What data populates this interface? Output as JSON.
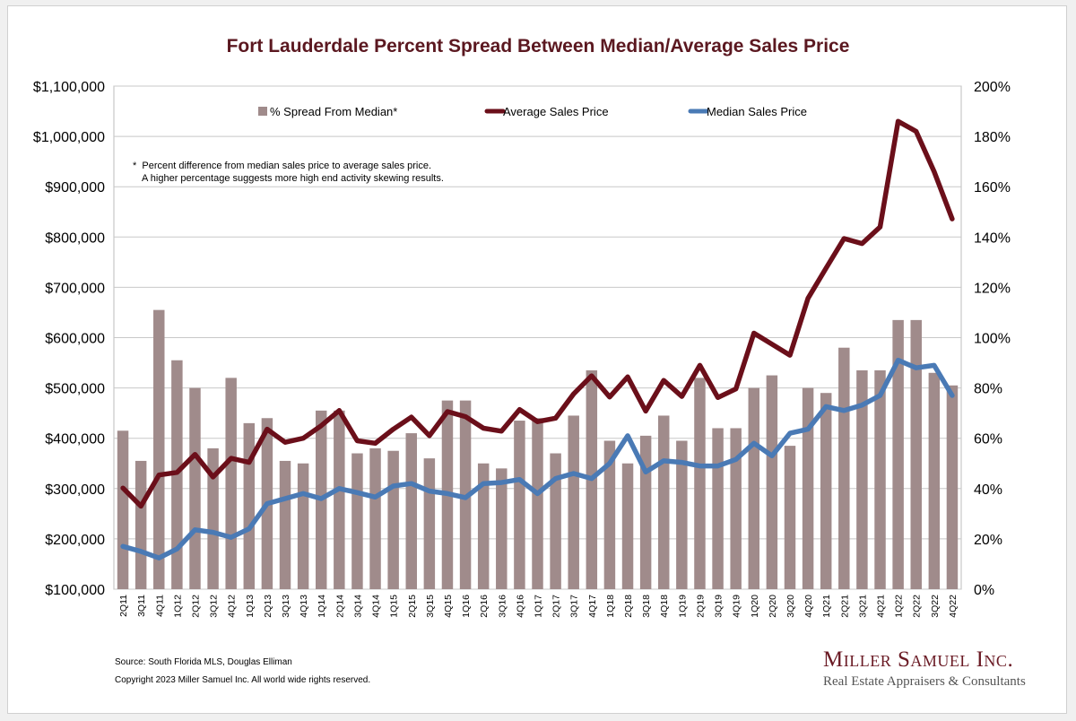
{
  "chart_data": {
    "type": "bar+line",
    "title": "Fort Lauderdale Percent Spread Between Median/Average Sales Price",
    "categories": [
      "2Q11",
      "3Q11",
      "4Q11",
      "1Q12",
      "2Q12",
      "3Q12",
      "4Q12",
      "1Q13",
      "2Q13",
      "3Q13",
      "4Q13",
      "1Q14",
      "2Q14",
      "3Q14",
      "4Q14",
      "1Q15",
      "2Q15",
      "3Q15",
      "4Q15",
      "1Q16",
      "2Q16",
      "3Q16",
      "4Q16",
      "1Q17",
      "2Q17",
      "3Q17",
      "4Q17",
      "1Q18",
      "2Q18",
      "3Q18",
      "4Q18",
      "1Q19",
      "2Q19",
      "3Q19",
      "4Q19",
      "1Q20",
      "2Q20",
      "3Q20",
      "4Q20",
      "1Q21",
      "2Q21",
      "3Q21",
      "4Q21",
      "1Q22",
      "2Q22",
      "3Q22",
      "4Q22"
    ],
    "series": [
      {
        "name": "% Spread From Median*",
        "type": "bar",
        "axis": "right",
        "color": "#a08b8b",
        "values": [
          63,
          51,
          111,
          91,
          80,
          56,
          84,
          66,
          68,
          51,
          50,
          71,
          71,
          54,
          56,
          55,
          62,
          52,
          75,
          75,
          50,
          48,
          67,
          68,
          54,
          69,
          87,
          59,
          50,
          61,
          69,
          59,
          84,
          64,
          64,
          80,
          85,
          57,
          80,
          78,
          96,
          87,
          87,
          107,
          107,
          86,
          81
        ]
      },
      {
        "name": "Average Sales Price",
        "type": "line",
        "axis": "left",
        "color": "#6b0f1a",
        "values": [
          301000,
          265000,
          327000,
          332000,
          368000,
          323000,
          360000,
          352000,
          418000,
          392000,
          400000,
          425000,
          455000,
          395000,
          390000,
          418000,
          442000,
          405000,
          453000,
          443000,
          420000,
          414000,
          457000,
          433000,
          440000,
          488000,
          524000,
          482000,
          522000,
          454000,
          515000,
          483000,
          545000,
          481000,
          498000,
          609000,
          587000,
          565000,
          678000,
          738000,
          797000,
          787000,
          820000,
          1030000,
          1010000,
          930000,
          836000
        ]
      },
      {
        "name": "Median Sales Price",
        "type": "line",
        "axis": "left",
        "color": "#4a7ab5",
        "values": [
          185000,
          175000,
          162000,
          180000,
          218000,
          213000,
          203000,
          220000,
          270000,
          280000,
          290000,
          280000,
          300000,
          292000,
          283000,
          305000,
          310000,
          295000,
          290000,
          282000,
          310000,
          312000,
          318000,
          290000,
          320000,
          330000,
          320000,
          350000,
          405000,
          333000,
          355000,
          352000,
          345000,
          345000,
          358000,
          390000,
          365000,
          410000,
          418000,
          463000,
          455000,
          466000,
          485000,
          555000,
          540000,
          545000,
          485000
        ]
      }
    ],
    "y_left": {
      "min": 100000,
      "max": 1100000,
      "ticks": [
        "$100,000",
        "$200,000",
        "$300,000",
        "$400,000",
        "$500,000",
        "$600,000",
        "$700,000",
        "$800,000",
        "$900,000",
        "$1,000,000",
        "$1,100,000"
      ]
    },
    "y_right": {
      "min": 0,
      "max": 200,
      "ticks": [
        "0%",
        "20%",
        "40%",
        "60%",
        "80%",
        "100%",
        "120%",
        "140%",
        "160%",
        "180%",
        "200%"
      ]
    },
    "grid": true,
    "legend_position": "top-center",
    "note_line1": "Percent difference from median sales price to average sales price.",
    "note_line2": "A higher percentage suggests more high end activity skewing results.",
    "note_marker": "*"
  },
  "footer": {
    "source": "Source: South Florida MLS, Douglas Elliman",
    "copyright": "Copyright 2023 Miller Samuel Inc.  All world wide rights reserved."
  },
  "logo": {
    "name": "Miller Samuel Inc.",
    "tagline": "Real Estate Appraisers & Consultants"
  }
}
